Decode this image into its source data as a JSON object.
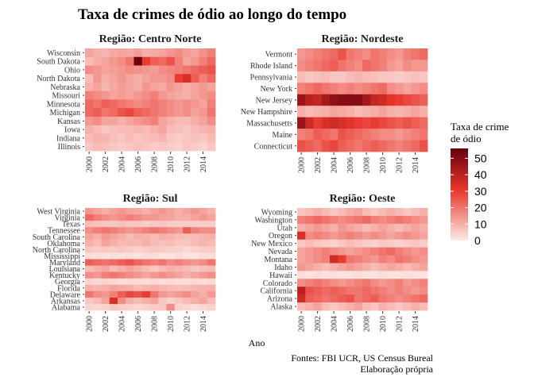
{
  "title": "Taxa de crimes de ódio ao longo do tempo",
  "xlabel": "Ano",
  "caption": [
    "Fontes: FBI UCR, US Census Bureal",
    "Elaboração própria"
  ],
  "legend": {
    "title": [
      "Taxa de crime",
      "de ódio"
    ],
    "ticks": [
      0,
      10,
      20,
      30,
      40,
      50
    ],
    "range": [
      0,
      56
    ],
    "colors": {
      "low": "#fde9e5",
      "mid": "#e8362c",
      "high": "#67000d"
    }
  },
  "chart_data": {
    "type": "heatmap",
    "years": [
      2000,
      2001,
      2002,
      2003,
      2004,
      2005,
      2006,
      2007,
      2008,
      2009,
      2010,
      2011,
      2012,
      2013,
      2014,
      2015
    ],
    "x_tick_labels": [
      "2000",
      "2002",
      "2004",
      "2006",
      "2008",
      "2010",
      "2012",
      "2014"
    ],
    "panels": [
      {
        "title": "Região: Centro Norte",
        "states": [
          "Wisconsin",
          "South Dakota",
          "Ohio",
          "North Dakota",
          "Nebraska",
          "Missouri",
          "Minnesota",
          "Michigan",
          "Kansas",
          "Iowa",
          "Indiana",
          "Illinois"
        ],
        "values": [
          [
            12,
            10,
            9,
            11,
            12,
            11,
            13,
            10,
            11,
            12,
            14,
            16,
            13,
            12,
            15,
            18
          ],
          [
            8,
            10,
            12,
            14,
            16,
            20,
            55,
            30,
            24,
            22,
            26,
            18,
            12,
            14,
            18,
            22
          ],
          [
            16,
            14,
            12,
            13,
            14,
            16,
            15,
            14,
            13,
            16,
            17,
            18,
            20,
            22,
            24,
            26
          ],
          [
            8,
            14,
            10,
            12,
            14,
            12,
            10,
            12,
            14,
            14,
            16,
            30,
            34,
            24,
            18,
            22
          ],
          [
            10,
            12,
            9,
            11,
            13,
            12,
            10,
            14,
            12,
            11,
            14,
            12,
            10,
            12,
            14,
            12
          ],
          [
            18,
            16,
            14,
            12,
            13,
            12,
            14,
            16,
            18,
            14,
            12,
            11,
            10,
            12,
            14,
            16
          ],
          [
            22,
            20,
            24,
            22,
            20,
            18,
            16,
            18,
            20,
            18,
            16,
            14,
            16,
            14,
            12,
            18
          ],
          [
            22,
            24,
            20,
            22,
            26,
            28,
            24,
            22,
            20,
            18,
            16,
            14,
            16,
            12,
            14,
            20
          ],
          [
            14,
            16,
            12,
            12,
            10,
            12,
            14,
            16,
            18,
            12,
            10,
            8,
            8,
            10,
            12,
            16
          ],
          [
            10,
            8,
            6,
            7,
            8,
            8,
            9,
            8,
            10,
            12,
            8,
            7,
            6,
            8,
            9,
            10
          ],
          [
            8,
            10,
            9,
            7,
            6,
            8,
            6,
            7,
            8,
            9,
            6,
            5,
            6,
            7,
            6,
            8
          ],
          [
            6,
            8,
            7,
            6,
            5,
            6,
            7,
            6,
            5,
            6,
            5,
            4,
            6,
            5,
            4,
            6
          ]
        ]
      },
      {
        "title": "Região: Nordeste",
        "states": [
          "Vermont",
          "Rhode Island",
          "Pennsylvania",
          "New York",
          "New Jersey",
          "New Hampshire",
          "Massachusetts",
          "Maine",
          "Connecticut"
        ],
        "values": [
          [
            14,
            16,
            18,
            20,
            22,
            26,
            20,
            18,
            16,
            20,
            18,
            16,
            14,
            18,
            20,
            22
          ],
          [
            16,
            18,
            20,
            22,
            24,
            20,
            18,
            16,
            22,
            20,
            18,
            14,
            12,
            16,
            14,
            14
          ],
          [
            8,
            6,
            7,
            8,
            6,
            6,
            8,
            9,
            8,
            7,
            6,
            6,
            5,
            6,
            7,
            6
          ],
          [
            18,
            20,
            22,
            20,
            18,
            16,
            18,
            16,
            18,
            20,
            22,
            16,
            14,
            12,
            14,
            16
          ],
          [
            46,
            40,
            38,
            44,
            48,
            50,
            50,
            50,
            44,
            38,
            36,
            32,
            30,
            28,
            26,
            24
          ],
          [
            10,
            8,
            9,
            10,
            12,
            11,
            10,
            8,
            9,
            10,
            12,
            10,
            9,
            10,
            12,
            10
          ],
          [
            46,
            36,
            30,
            34,
            36,
            34,
            32,
            30,
            28,
            30,
            28,
            26,
            24,
            26,
            24,
            22
          ],
          [
            18,
            20,
            24,
            22,
            20,
            26,
            24,
            22,
            20,
            18,
            16,
            16,
            14,
            16,
            18,
            20
          ],
          [
            26,
            24,
            22,
            26,
            28,
            24,
            22,
            20,
            22,
            24,
            22,
            20,
            18,
            20,
            22,
            26
          ]
        ]
      },
      {
        "title": "Região: Sul",
        "states": [
          "West Virginia",
          "Virginia",
          "Texas",
          "Tennessee",
          "South Carolina",
          "Oklahoma",
          "North Carolina",
          "Mississippi",
          "Maryland",
          "Louisiana",
          "Kentucky",
          "Georgia",
          "Florida",
          "Delaware",
          "Arkansas",
          "Alabama"
        ],
        "values": [
          [
            14,
            12,
            10,
            12,
            14,
            12,
            11,
            10,
            12,
            14,
            12,
            10,
            12,
            14,
            12,
            10
          ],
          [
            22,
            18,
            16,
            14,
            16,
            18,
            16,
            14,
            14,
            12,
            12,
            10,
            10,
            12,
            14,
            12
          ],
          [
            8,
            7,
            6,
            6,
            7,
            6,
            6,
            5,
            6,
            6,
            5,
            5,
            5,
            5,
            5,
            5
          ],
          [
            16,
            18,
            20,
            18,
            16,
            14,
            16,
            18,
            20,
            18,
            16,
            14,
            24,
            18,
            16,
            16
          ],
          [
            12,
            10,
            14,
            12,
            10,
            8,
            10,
            9,
            8,
            10,
            9,
            8,
            7,
            8,
            9,
            10
          ],
          [
            10,
            8,
            12,
            10,
            8,
            9,
            8,
            10,
            8,
            7,
            8,
            6,
            6,
            8,
            9,
            8
          ],
          [
            6,
            5,
            6,
            5,
            6,
            5,
            4,
            5,
            6,
            5,
            4,
            4,
            3,
            4,
            5,
            5
          ],
          [
            2,
            2,
            1,
            2,
            1,
            2,
            1,
            2,
            2,
            1,
            1,
            2,
            1,
            1,
            2,
            2
          ],
          [
            24,
            22,
            20,
            22,
            24,
            26,
            22,
            20,
            18,
            20,
            16,
            18,
            16,
            14,
            16,
            20
          ],
          [
            8,
            10,
            12,
            8,
            10,
            12,
            10,
            8,
            6,
            8,
            10,
            9,
            8,
            6,
            7,
            8
          ],
          [
            16,
            14,
            18,
            20,
            18,
            16,
            14,
            12,
            14,
            16,
            14,
            12,
            10,
            12,
            14,
            16
          ],
          [
            4,
            3,
            4,
            3,
            2,
            3,
            3,
            2,
            3,
            2,
            3,
            2,
            2,
            3,
            2,
            3
          ],
          [
            10,
            9,
            10,
            12,
            11,
            10,
            8,
            9,
            10,
            9,
            8,
            7,
            8,
            9,
            10,
            10
          ],
          [
            20,
            16,
            14,
            18,
            24,
            28,
            26,
            30,
            20,
            14,
            12,
            14,
            16,
            12,
            10,
            14
          ],
          [
            6,
            8,
            12,
            34,
            16,
            10,
            8,
            10,
            12,
            6,
            4,
            6,
            8,
            10,
            12,
            8
          ],
          [
            4,
            3,
            4,
            6,
            5,
            4,
            3,
            4,
            5,
            6,
            16,
            4,
            3,
            2,
            3,
            4
          ]
        ]
      },
      {
        "title": "Região: Oeste",
        "states": [
          "Wyoming",
          "Washington",
          "Utah",
          "Oregon",
          "New Mexico",
          "Nevada",
          "Montana",
          "Idaho",
          "Hawaii",
          "Colorado",
          "California",
          "Arizona",
          "Alaska"
        ],
        "values": [
          [
            6,
            8,
            10,
            8,
            6,
            8,
            10,
            12,
            8,
            6,
            8,
            10,
            8,
            6,
            8,
            10
          ],
          [
            18,
            20,
            22,
            20,
            18,
            16,
            18,
            20,
            22,
            18,
            16,
            18,
            20,
            18,
            16,
            14
          ],
          [
            10,
            12,
            14,
            12,
            10,
            14,
            12,
            10,
            8,
            10,
            12,
            10,
            8,
            10,
            12,
            10
          ],
          [
            34,
            16,
            18,
            16,
            14,
            16,
            18,
            16,
            14,
            16,
            14,
            12,
            14,
            16,
            14,
            12
          ],
          [
            6,
            8,
            6,
            5,
            4,
            6,
            8,
            6,
            5,
            4,
            6,
            5,
            4,
            5,
            6,
            5
          ],
          [
            12,
            14,
            16,
            18,
            16,
            14,
            12,
            14,
            16,
            18,
            20,
            22,
            18,
            16,
            14,
            16
          ],
          [
            12,
            14,
            16,
            18,
            36,
            30,
            20,
            18,
            16,
            14,
            18,
            16,
            20,
            18,
            16,
            14
          ],
          [
            14,
            12,
            10,
            8,
            10,
            12,
            14,
            12,
            10,
            8,
            10,
            12,
            10,
            8,
            10,
            12
          ],
          [
            2,
            1,
            2,
            1,
            2,
            1,
            1,
            2,
            1,
            1,
            2,
            1,
            1,
            2,
            1,
            1
          ],
          [
            16,
            18,
            20,
            18,
            16,
            14,
            16,
            18,
            20,
            16,
            14,
            16,
            18,
            14,
            16,
            18
          ],
          [
            40,
            26,
            24,
            22,
            24,
            22,
            20,
            20,
            22,
            20,
            18,
            16,
            18,
            16,
            14,
            16
          ],
          [
            36,
            24,
            22,
            20,
            22,
            24,
            26,
            20,
            22,
            24,
            20,
            18,
            16,
            18,
            20,
            22
          ],
          [
            8,
            10,
            12,
            8,
            6,
            8,
            10,
            12,
            8,
            6,
            10,
            8,
            6,
            8,
            10,
            8
          ]
        ]
      }
    ]
  }
}
